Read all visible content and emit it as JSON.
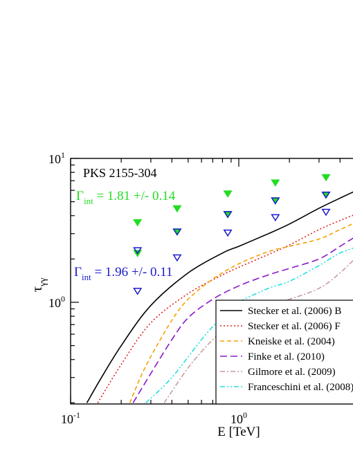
{
  "chart_data": {
    "type": "line",
    "x_scale": "log",
    "y_scale": "log",
    "xlim": [
      0.1,
      10
    ],
    "ylim": [
      0.2,
      10
    ],
    "xlabel": "E [TeV]",
    "ylabel_main": "τ",
    "ylabel_sub": "γγ",
    "x_ticks": [
      {
        "value": 0.1,
        "base": "10",
        "exp": "-1"
      },
      {
        "value": 1,
        "base": "10",
        "exp": "0"
      }
    ],
    "y_ticks": [
      {
        "value": 1,
        "base": "10",
        "exp": "0"
      },
      {
        "value": 10,
        "base": "10",
        "exp": "1"
      }
    ],
    "source_label": "PKS 2155-304",
    "gamma_labels": [
      {
        "symbol": "Γ",
        "sub": "int",
        "rest": " = 1.81 +/- 0.14",
        "color": "#22dd22"
      },
      {
        "symbol": "Γ",
        "sub": "int",
        "rest": " = 1.96 +/- 0.11",
        "color": "#1a1acc"
      }
    ],
    "curves": [
      {
        "name": "Stecker et al. (2006) B",
        "color": "#000000",
        "dash": "none",
        "points": [
          [
            0.125,
            0.2
          ],
          [
            0.15,
            0.29
          ],
          [
            0.2,
            0.5
          ],
          [
            0.3,
            0.95
          ],
          [
            0.5,
            1.6
          ],
          [
            0.8,
            2.2
          ],
          [
            1.0,
            2.45
          ],
          [
            1.5,
            3.0
          ],
          [
            2.0,
            3.5
          ],
          [
            3.0,
            4.5
          ],
          [
            4.0,
            5.3
          ],
          [
            5.5,
            6.3
          ]
        ]
      },
      {
        "name": "Stecker et al. (2006) F",
        "color": "#e02020",
        "dash": "2,3",
        "points": [
          [
            0.145,
            0.2
          ],
          [
            0.2,
            0.37
          ],
          [
            0.3,
            0.72
          ],
          [
            0.5,
            1.15
          ],
          [
            0.8,
            1.55
          ],
          [
            1.0,
            1.75
          ],
          [
            1.5,
            2.15
          ],
          [
            2.0,
            2.5
          ],
          [
            3.0,
            3.2
          ],
          [
            4.0,
            3.7
          ],
          [
            5.5,
            4.3
          ]
        ]
      },
      {
        "name": "Kneiske et al. (2004)",
        "color": "#f5a000",
        "dash": "6,4",
        "points": [
          [
            0.225,
            0.2
          ],
          [
            0.26,
            0.3
          ],
          [
            0.3,
            0.42
          ],
          [
            0.4,
            0.75
          ],
          [
            0.5,
            1.05
          ],
          [
            0.7,
            1.45
          ],
          [
            1.0,
            1.85
          ],
          [
            1.5,
            2.25
          ],
          [
            2.0,
            2.45
          ],
          [
            3.0,
            2.75
          ],
          [
            4.0,
            3.2
          ],
          [
            5.5,
            3.8
          ]
        ]
      },
      {
        "name": "Finke et al. (2010)",
        "color": "#8a18c8",
        "dash": "10,5",
        "points": [
          [
            0.235,
            0.2
          ],
          [
            0.3,
            0.32
          ],
          [
            0.4,
            0.55
          ],
          [
            0.5,
            0.78
          ],
          [
            0.7,
            1.05
          ],
          [
            1.0,
            1.3
          ],
          [
            1.5,
            1.55
          ],
          [
            2.0,
            1.72
          ],
          [
            3.0,
            2.0
          ],
          [
            4.0,
            2.45
          ],
          [
            5.5,
            3.1
          ]
        ]
      },
      {
        "name": "Gilmore et al. (2009)",
        "color": "#c89aa0",
        "dash": "7,3,2,3",
        "points": [
          [
            0.36,
            0.2
          ],
          [
            0.5,
            0.35
          ],
          [
            0.7,
            0.55
          ],
          [
            1.0,
            0.78
          ],
          [
            1.5,
            0.95
          ],
          [
            2.0,
            1.05
          ],
          [
            3.0,
            1.25
          ],
          [
            4.0,
            1.6
          ],
          [
            5.5,
            2.3
          ]
        ]
      },
      {
        "name": "Franceschini et al. (2008)",
        "color": "#22dddd",
        "dash": "7,3,2,3,2,3",
        "points": [
          [
            0.28,
            0.2
          ],
          [
            0.4,
            0.3
          ],
          [
            0.6,
            0.55
          ],
          [
            0.8,
            0.8
          ],
          [
            1.0,
            1.0
          ],
          [
            1.5,
            1.25
          ],
          [
            2.0,
            1.4
          ],
          [
            3.0,
            1.8
          ],
          [
            4.0,
            2.2
          ],
          [
            5.5,
            2.5
          ]
        ]
      }
    ],
    "markers": [
      {
        "name": "filled-green",
        "color": "#22dd22",
        "fill": true,
        "points": [
          [
            0.25,
            3.6
          ],
          [
            0.25,
            2.2
          ],
          [
            0.43,
            4.5
          ],
          [
            0.43,
            3.1
          ],
          [
            0.86,
            5.7
          ],
          [
            0.86,
            4.1
          ],
          [
            1.65,
            6.8
          ],
          [
            1.65,
            5.1
          ],
          [
            3.3,
            7.4
          ],
          [
            3.3,
            5.6
          ]
        ]
      },
      {
        "name": "open-blue",
        "color": "#1a1acc",
        "fill": false,
        "points": [
          [
            0.25,
            2.3
          ],
          [
            0.25,
            1.2
          ],
          [
            0.43,
            3.1
          ],
          [
            0.43,
            2.05
          ],
          [
            0.86,
            4.1
          ],
          [
            0.86,
            3.05
          ],
          [
            1.65,
            5.1
          ],
          [
            1.65,
            3.9
          ],
          [
            3.3,
            5.6
          ],
          [
            3.3,
            4.25
          ]
        ]
      }
    ]
  }
}
